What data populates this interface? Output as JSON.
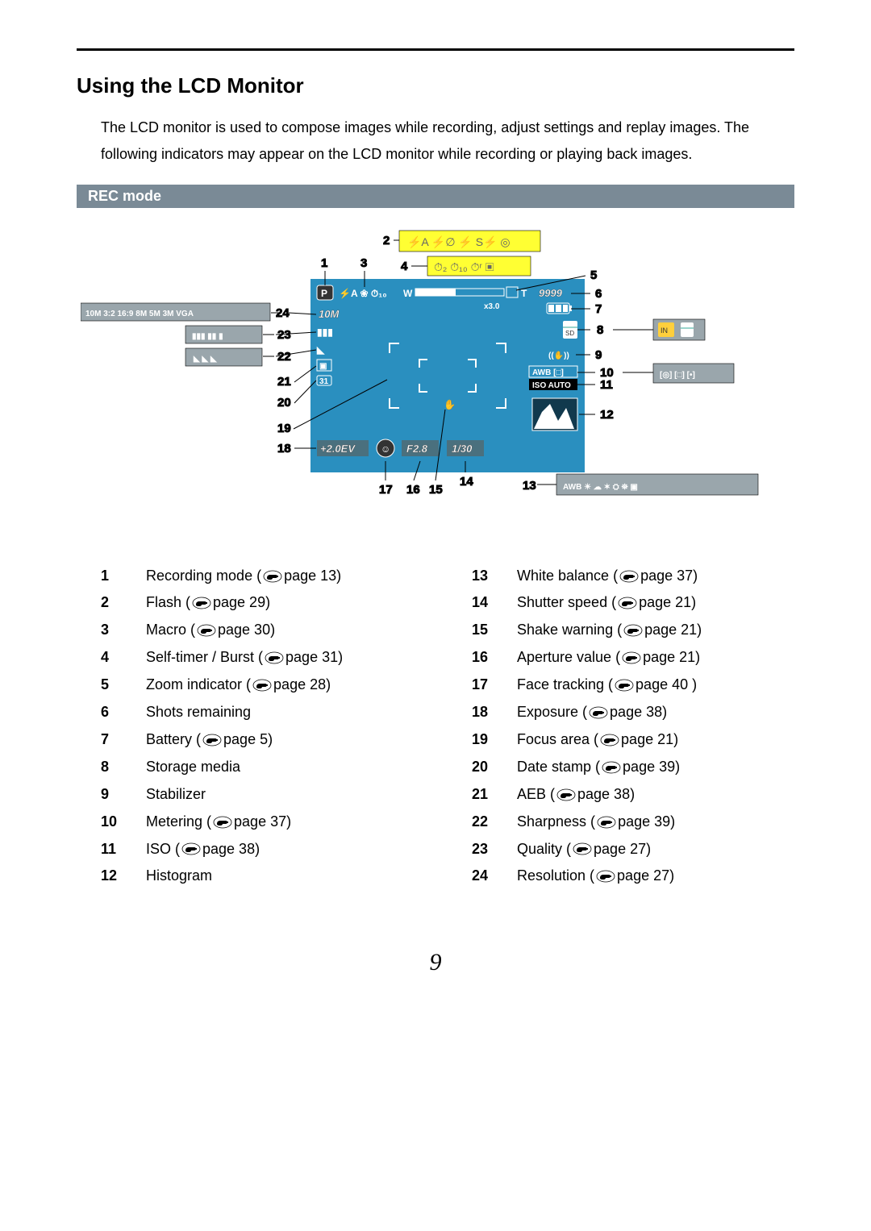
{
  "title": "Using the LCD Monitor",
  "intro": "The LCD monitor is used to compose images while recording, adjust settings and replay images. The following indicators may appear on the LCD monitor while recording or playing back images.",
  "section_header": "REC mode",
  "pageNumber": "9",
  "diagram": {
    "bg": "#2a8fbf",
    "screen_bg": "#2a8fbf",
    "hl_bg": "#ffff33",
    "icon_fill": "#8aa1a8",
    "icon_stroke": "#ffffff",
    "font": "Arial",
    "labels": [
      "1",
      "2",
      "3",
      "4",
      "5",
      "6",
      "7",
      "8",
      "9",
      "10",
      "11",
      "12",
      "13",
      "14",
      "15",
      "16",
      "17",
      "18",
      "19",
      "20",
      "21",
      "22",
      "23",
      "24"
    ],
    "left_strip_items": [
      "10M",
      "3:2",
      "16:9",
      "8M",
      "5M",
      "3M",
      "VGA"
    ],
    "right_side_items_8": [
      "IN"
    ],
    "right_side_items_10": [
      "[◎]",
      "[□]",
      "[•]"
    ],
    "wb_strip": [
      "AWB",
      "☀",
      "☁",
      "✶",
      "⛭",
      "⛯",
      "▣"
    ],
    "yellow_flash": [
      "⚡A",
      "⚡∅",
      "⚡",
      "S⚡",
      "◎"
    ],
    "yellow_timer": [
      "⏱₂",
      "⏱₁₀",
      "⏱ʳ",
      "▣"
    ],
    "top_p": "P",
    "top_icons": "⚡A ❀ ⏱₁₀",
    "zoom_w": "W",
    "zoom_t": "T",
    "zoom_x": "x3.0",
    "shots": "9999",
    "res": "10M",
    "quality_icons": "▮▮▮ ▮▮ ▮",
    "sharp_icons": "◣ ◣ ◣",
    "aeb": "▣",
    "date": "▭",
    "focus_area": "[ ‿ ]",
    "exposure": "+2.0EV",
    "face_icon": "☺",
    "aperture": "F2.8",
    "shutter": "1/30",
    "awb": "AWB [□]",
    "iso": "ISO AUTO",
    "stab": "((✋))"
  },
  "legend_left": [
    {
      "n": "1",
      "label": "Recording mode",
      "page": "13"
    },
    {
      "n": "2",
      "label": "Flash",
      "page": "29"
    },
    {
      "n": "3",
      "label": "Macro",
      "page": "30"
    },
    {
      "n": "4",
      "label": "Self-timer / Burst",
      "page": "31"
    },
    {
      "n": "5",
      "label": "Zoom indicator",
      "page": "28"
    },
    {
      "n": "6",
      "label": "Shots remaining",
      "page": null
    },
    {
      "n": "7",
      "label": "Battery",
      "page": "5"
    },
    {
      "n": "8",
      "label": "Storage media",
      "page": null
    },
    {
      "n": "9",
      "label": "Stabilizer",
      "page": null
    },
    {
      "n": "10",
      "label": "Metering",
      "page": "37"
    },
    {
      "n": "11",
      "label": "ISO",
      "page": "38"
    },
    {
      "n": "12",
      "label": "Histogram",
      "page": null
    }
  ],
  "legend_right": [
    {
      "n": "13",
      "label": "White balance",
      "page": "37"
    },
    {
      "n": "14",
      "label": "Shutter speed",
      "page": "21"
    },
    {
      "n": "15",
      "label": "Shake warning",
      "page": "21"
    },
    {
      "n": "16",
      "label": "Aperture value",
      "page": "21"
    },
    {
      "n": "17",
      "label": "Face tracking",
      "page": "40 "
    },
    {
      "n": "18",
      "label": "Exposure",
      "page": "38"
    },
    {
      "n": "19",
      "label": "Focus area",
      "page": "21"
    },
    {
      "n": "20",
      "label": "Date stamp",
      "page": "39"
    },
    {
      "n": "21",
      "label": "AEB",
      "page": "38"
    },
    {
      "n": "22",
      "label": "Sharpness",
      "page": "39"
    },
    {
      "n": "23",
      "label": "Quality",
      "page": "27"
    },
    {
      "n": "24",
      "label": "Resolution",
      "page": "27"
    }
  ]
}
